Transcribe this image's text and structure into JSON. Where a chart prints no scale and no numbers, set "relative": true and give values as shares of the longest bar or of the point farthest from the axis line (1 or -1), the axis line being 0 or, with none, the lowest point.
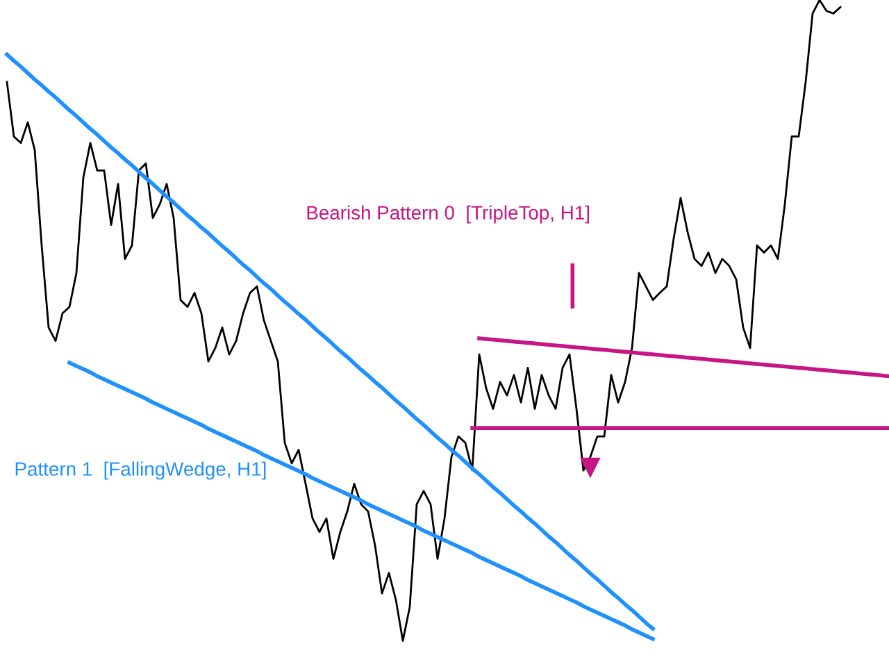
{
  "chart_data": {
    "type": "line",
    "relative": true,
    "tick_labels": false,
    "categories": [
      null,
      null,
      null,
      null,
      null,
      null,
      null,
      null,
      null,
      null,
      null,
      null,
      null,
      null,
      null,
      null,
      null,
      null,
      null,
      null,
      null,
      null,
      null,
      null,
      null,
      null,
      null,
      null,
      null,
      null,
      null,
      null,
      null,
      null,
      null,
      null,
      null,
      null,
      null,
      null,
      null,
      null,
      null,
      null,
      null,
      null,
      null,
      null,
      null,
      null,
      null,
      null,
      null,
      null,
      null,
      null,
      null,
      null,
      null,
      null,
      null,
      null,
      null,
      null,
      null,
      null,
      null,
      null,
      null,
      null,
      null,
      null,
      null,
      null,
      null,
      null,
      null,
      null,
      null,
      null,
      null,
      null,
      null,
      null,
      null,
      null,
      null,
      null,
      null,
      null,
      null,
      null,
      null,
      null,
      null,
      null,
      null,
      null,
      null,
      null,
      null,
      null,
      null,
      null,
      null,
      null,
      null,
      null,
      null,
      null,
      null,
      null,
      null,
      null,
      null,
      null,
      null,
      null,
      null,
      null,
      null,
      null,
      null,
      null,
      null,
      null,
      null,
      null
    ],
    "series": [
      {
        "color": "#000000",
        "values": [
          0.872,
          0.787,
          0.777,
          0.809,
          0.766,
          0.617,
          0.489,
          0.468,
          0.511,
          0.521,
          0.574,
          0.723,
          0.777,
          0.734,
          0.734,
          0.649,
          0.713,
          0.596,
          0.617,
          0.734,
          0.745,
          0.66,
          0.681,
          0.713,
          0.66,
          0.532,
          0.521,
          0.543,
          0.511,
          0.436,
          0.457,
          0.489,
          0.447,
          0.468,
          0.511,
          0.543,
          0.553,
          0.5,
          0.468,
          0.436,
          0.309,
          0.277,
          0.298,
          0.245,
          0.191,
          0.17,
          0.191,
          0.128,
          0.17,
          0.202,
          0.245,
          0.213,
          0.202,
          0.149,
          0.074,
          0.106,
          0.064,
          0,
          0.053,
          0.213,
          0.234,
          0.213,
          0.128,
          0.191,
          0.287,
          0.319,
          0.309,
          0.266,
          0.447,
          0.394,
          0.362,
          0.404,
          0.383,
          0.415,
          0.372,
          0.426,
          0.362,
          0.415,
          0.383,
          0.362,
          0.426,
          0.447,
          0.362,
          0.266,
          0.287,
          0.319,
          0.319,
          0.415,
          0.372,
          0.404,
          0.457,
          0.574,
          0.553,
          0.532,
          0.543,
          0.553,
          0.628,
          0.691,
          0.638,
          0.596,
          0.585,
          0.606,
          0.574,
          0.596,
          0.585,
          0.564,
          0.489,
          0.457,
          0.617,
          0.606,
          0.617,
          0.596,
          0.681,
          0.787,
          0.787,
          0.872,
          0.979,
          1,
          0.983,
          0.979,
          0.989,
          null,
          null,
          null,
          null,
          null,
          null,
          null
        ]
      },
      {
        "color": "#c71585",
        "values": [
          null,
          null,
          null,
          null,
          null,
          null,
          null,
          null,
          null,
          null,
          null,
          null,
          null,
          null,
          null,
          null,
          null,
          null,
          null,
          null,
          null,
          null,
          null,
          null,
          null,
          null,
          null,
          null,
          null,
          null,
          null,
          null,
          null,
          null,
          null,
          null,
          null,
          null,
          null,
          null,
          null,
          null,
          null,
          null,
          null,
          null,
          null,
          null,
          null,
          null,
          null,
          null,
          null,
          null,
          null,
          null,
          null,
          null,
          null,
          null,
          null,
          null,
          null,
          null,
          null,
          null,
          null,
          null,
          0.472,
          0.471,
          0.47,
          0.469,
          0.468,
          0.467,
          0.466,
          0.465,
          0.464,
          0.463,
          0.462,
          0.461,
          0.46,
          0.459,
          0.458,
          0.457,
          0.456,
          0.455,
          0.454,
          0.453,
          0.452,
          0.451,
          0.45,
          0.449,
          0.448,
          0.447,
          0.446,
          0.445,
          0.444,
          0.443,
          0.442,
          0.441,
          0.44,
          0.439,
          0.438,
          0.437,
          0.436,
          0.435,
          0.434,
          0.433,
          0.432,
          0.431,
          0.43,
          0.429,
          0.428,
          0.427,
          0.426,
          0.425,
          0.424,
          0.423,
          0.422,
          0.421,
          0.42,
          0.419,
          0.418,
          0.417,
          0.416,
          0.415,
          0.414,
          0.413
        ]
      },
      {
        "color": "#1e90ff",
        "values": [
          0.915,
          0.905,
          0.896,
          0.886,
          0.876,
          0.867,
          0.857,
          0.848,
          0.838,
          0.828,
          0.819,
          0.809,
          0.799,
          0.79,
          0.78,
          0.77,
          0.761,
          0.751,
          0.742,
          0.732,
          0.722,
          0.713,
          0.703,
          0.693,
          0.684,
          0.674,
          0.664,
          0.655,
          0.645,
          0.636,
          0.626,
          0.616,
          0.607,
          0.597,
          0.587,
          0.578,
          0.568,
          0.558,
          0.549,
          0.539,
          0.529,
          0.52,
          0.51,
          0.501,
          0.491,
          0.481,
          0.472,
          0.462,
          0.452,
          0.443,
          0.433,
          0.423,
          0.414,
          0.404,
          0.395,
          0.385,
          0.375,
          0.366,
          0.356,
          0.346,
          0.337,
          0.327,
          0.317,
          0.308,
          0.298,
          0.289,
          0.279,
          0.269,
          0.26,
          0.25,
          0.24,
          0.231,
          0.221,
          0.211,
          0.202,
          0.192,
          0.183,
          0.173,
          0.163,
          0.154,
          0.144,
          0.134,
          0.125,
          0.115,
          0.105,
          0.096,
          0.086,
          0.076,
          0.067,
          0.057,
          0.048,
          0.038,
          0.028,
          0.019,
          null,
          null,
          null,
          null,
          null,
          null,
          null,
          null,
          null,
          null,
          null,
          null,
          null,
          null,
          null,
          null,
          null,
          null,
          null,
          null,
          null,
          null,
          null,
          null,
          null,
          null,
          null,
          null,
          null,
          null,
          null,
          null,
          null,
          null
        ]
      },
      {
        "color": "#1e90ff",
        "values": [
          null,
          null,
          null,
          null,
          null,
          null,
          null,
          null,
          null,
          0.434,
          0.429,
          0.424,
          0.419,
          0.413,
          0.408,
          0.403,
          0.398,
          0.393,
          0.388,
          0.383,
          0.378,
          0.372,
          0.367,
          0.362,
          0.357,
          0.352,
          0.347,
          0.342,
          0.337,
          0.331,
          0.326,
          0.321,
          0.316,
          0.311,
          0.306,
          0.301,
          0.296,
          0.29,
          0.285,
          0.28,
          0.275,
          0.27,
          0.265,
          0.26,
          0.254,
          0.249,
          0.244,
          0.239,
          0.234,
          0.229,
          0.224,
          0.219,
          0.213,
          0.208,
          0.203,
          0.198,
          0.193,
          0.188,
          0.183,
          0.178,
          0.172,
          0.167,
          0.162,
          0.157,
          0.152,
          0.147,
          0.142,
          0.137,
          0.131,
          0.126,
          0.121,
          0.116,
          0.111,
          0.106,
          0.101,
          0.095,
          0.09,
          0.085,
          0.08,
          0.075,
          0.07,
          0.065,
          0.06,
          0.054,
          0.049,
          0.044,
          0.039,
          0.034,
          0.029,
          0.024,
          0.018,
          0.013,
          0.008,
          0.003,
          null,
          null,
          null,
          null,
          null,
          null,
          null,
          null,
          null,
          null,
          null,
          null,
          null,
          null,
          null,
          null,
          null,
          null,
          null,
          null,
          null,
          null,
          null,
          null,
          null,
          null,
          null,
          null,
          null,
          null,
          null,
          null,
          null,
          null
        ]
      },
      {
        "color": "#c71585",
        "values": [
          null,
          null,
          null,
          null,
          null,
          null,
          null,
          null,
          null,
          null,
          null,
          null,
          null,
          null,
          null,
          null,
          null,
          null,
          null,
          null,
          null,
          null,
          null,
          null,
          null,
          null,
          null,
          null,
          null,
          null,
          null,
          null,
          null,
          null,
          null,
          null,
          null,
          null,
          null,
          null,
          null,
          null,
          null,
          null,
          null,
          null,
          null,
          null,
          null,
          null,
          null,
          null,
          null,
          null,
          null,
          null,
          null,
          null,
          null,
          null,
          null,
          null,
          null,
          null,
          null,
          null,
          null,
          0.332,
          0.332,
          0.332,
          0.332,
          0.332,
          0.332,
          0.332,
          0.332,
          0.332,
          0.332,
          0.332,
          0.332,
          0.332,
          0.332,
          0.332,
          0.332,
          0.332,
          0.332,
          0.332,
          0.332,
          0.332,
          0.332,
          0.332,
          0.332,
          0.332,
          0.332,
          0.332,
          0.332,
          0.332,
          0.332,
          0.332,
          0.332,
          0.332,
          0.332,
          0.332,
          0.332,
          0.332,
          0.332,
          0.332,
          0.332,
          0.332,
          0.332,
          0.332,
          0.332,
          0.332,
          0.332,
          0.332,
          0.332,
          0.332,
          0.332,
          0.332,
          0.332,
          0.332,
          0.332,
          0.332,
          0.332,
          0.332,
          0.332,
          0.332,
          0.332,
          0.332
        ]
      }
    ],
    "annotations": [
      "Bearish Pattern 0  [TripleTop, H1]",
      "Pattern 1  [FallingWedge, H1]"
    ]
  }
}
